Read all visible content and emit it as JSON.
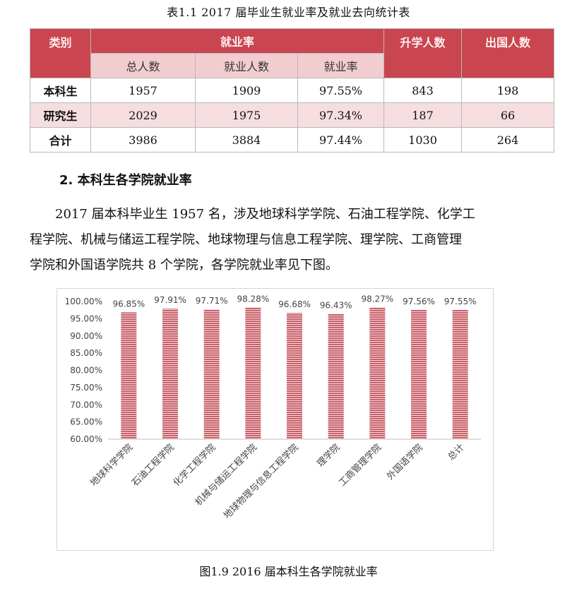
{
  "table": {
    "caption": "表1.1  2017 届毕业生就业率及就业去向统计表",
    "header": {
      "category": "类别",
      "employment_rate_group": "就业率",
      "further_study": "升学人数",
      "abroad": "出国人数",
      "sub_total": "总人数",
      "sub_employed": "就业人数",
      "sub_rate": "就业率"
    },
    "rows": [
      {
        "label": "本科生",
        "total": "1957",
        "employed": "1909",
        "rate": "97.55%",
        "study": "843",
        "abroad": "198"
      },
      {
        "label": "研究生",
        "total": "2029",
        "employed": "1975",
        "rate": "97.34%",
        "study": "187",
        "abroad": "66"
      },
      {
        "label": "合计",
        "total": "3986",
        "employed": "3884",
        "rate": "97.44%",
        "study": "1030",
        "abroad": "264"
      }
    ]
  },
  "section": {
    "title": "2.  本科生各学院就业率",
    "paragraph_lines": [
      "2017 届本科毕业生 1957 名，涉及地球科学学院、石油工程学院、化学工",
      "程学院、机械与储运工程学院、地球物理与信息工程学院、理学院、工商管理",
      "学院和外国语学院共 8 个学院，各学院就业率见下图。"
    ]
  },
  "figure": {
    "caption": "图1.9    2016 届本科生各学院就业率"
  },
  "chart_data": {
    "type": "bar",
    "categories": [
      "地球科学学院",
      "石油工程学院",
      "化学工程学院",
      "机械与储运工程学院",
      "地球物理与信息工程学院",
      "理学院",
      "工商管理学院",
      "外国语学院",
      "总计"
    ],
    "values": [
      96.85,
      97.91,
      97.71,
      98.28,
      96.68,
      96.43,
      98.27,
      97.56,
      97.55
    ],
    "data_labels": [
      "96.85%",
      "97.91%",
      "97.71%",
      "98.28%",
      "96.68%",
      "96.43%",
      "98.27%",
      "97.56%",
      "97.55%"
    ],
    "ylim": [
      60,
      100
    ],
    "yticks": [
      "60.00%",
      "65.00%",
      "70.00%",
      "75.00%",
      "80.00%",
      "85.00%",
      "90.00%",
      "95.00%",
      "100.00%"
    ],
    "grid": false,
    "bar_color": "#c9606a",
    "stripe_color": "#f3dadd"
  }
}
